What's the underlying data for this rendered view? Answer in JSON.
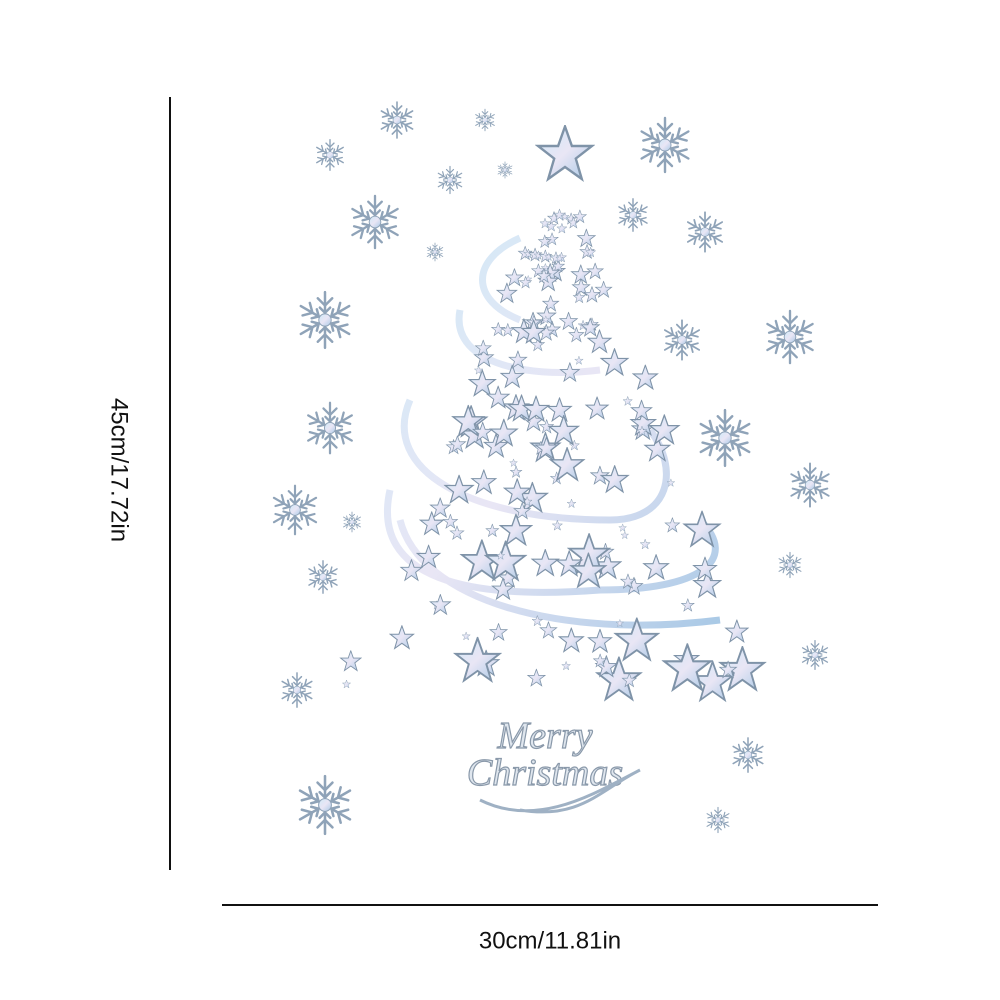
{
  "dimensions": {
    "height": "45cm/17.72in",
    "width": "30cm/11.81in"
  },
  "sticker": {
    "greeting_line1": "Merry",
    "greeting_line2": "Christmas"
  }
}
